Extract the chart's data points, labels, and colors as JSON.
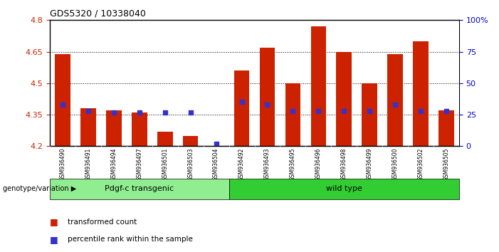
{
  "title": "GDS5320 / 10338040",
  "samples": [
    "GSM936490",
    "GSM936491",
    "GSM936494",
    "GSM936497",
    "GSM936501",
    "GSM936503",
    "GSM936504",
    "GSM936492",
    "GSM936493",
    "GSM936495",
    "GSM936496",
    "GSM936498",
    "GSM936499",
    "GSM936500",
    "GSM936502",
    "GSM936505"
  ],
  "red_values": [
    4.64,
    4.38,
    4.37,
    4.36,
    4.27,
    4.25,
    4.2,
    4.56,
    4.67,
    4.5,
    4.77,
    4.65,
    4.5,
    4.64,
    4.7,
    4.37
  ],
  "blue_pct": [
    33,
    28,
    27,
    27,
    27,
    27,
    2,
    35,
    33,
    28,
    28,
    28,
    28,
    33,
    28,
    28
  ],
  "bar_bottom": 4.2,
  "ylim_left": [
    4.2,
    4.8
  ],
  "ylim_right": [
    0,
    100
  ],
  "yticks_left": [
    4.2,
    4.35,
    4.5,
    4.65,
    4.8
  ],
  "yticks_right": [
    0,
    25,
    50,
    75,
    100
  ],
  "ytick_labels_left": [
    "4.2",
    "4.35",
    "4.5",
    "4.65",
    "4.8"
  ],
  "ytick_labels_right": [
    "0",
    "25",
    "50",
    "75",
    "100%"
  ],
  "group1_label": "Pdgf-c transgenic",
  "group2_label": "wild type",
  "group_label": "genotype/variation",
  "legend_red": "transformed count",
  "legend_blue": "percentile rank within the sample",
  "group1_color": "#90EE90",
  "group2_color": "#32CD32",
  "bar_color_red": "#CC2200",
  "bar_color_blue": "#3333CC",
  "bg_color": "#FFFFFF",
  "plot_bg": "#FFFFFF",
  "tick_label_color_left": "#CC2200",
  "tick_label_color_right": "#0000CC",
  "n_group1": 7,
  "n_group2": 9
}
